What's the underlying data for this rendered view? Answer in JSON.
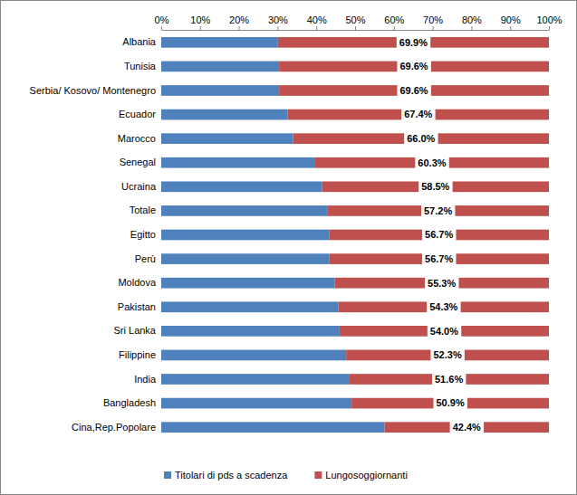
{
  "chart_data": {
    "type": "bar",
    "orientation": "horizontal",
    "stacked": true,
    "grid": false,
    "legend": "bottom",
    "categories": [
      "Albania",
      "Tunisia",
      "Serbia/ Kosovo/ Montenegro",
      "Ecuador",
      "Marocco",
      "Senegal",
      "Ucraina",
      "Totale",
      "Egitto",
      "Perù",
      "Moldova",
      "Pakistan",
      "Sri Lanka",
      "Filippine",
      "India",
      "Bangladesh",
      "Cina,Rep.Popolare"
    ],
    "series": [
      {
        "name": "Titolari di pds a scadenza",
        "color": "#4f81bd",
        "values": [
          30.1,
          30.4,
          30.4,
          32.6,
          34.0,
          39.7,
          41.5,
          42.8,
          43.3,
          43.3,
          44.7,
          45.7,
          46.0,
          47.7,
          48.4,
          49.1,
          57.6
        ]
      },
      {
        "name": "Lungosoggiornanti",
        "color": "#c0504d",
        "values": [
          69.9,
          69.6,
          69.6,
          67.4,
          66.0,
          60.3,
          58.5,
          57.2,
          56.7,
          56.7,
          55.3,
          54.3,
          54.0,
          52.3,
          51.6,
          50.9,
          42.4
        ],
        "data_labels": true,
        "value_labels": [
          "69.9%",
          "69.6%",
          "69.6%",
          "67.4%",
          "66.0%",
          "60.3%",
          "58.5%",
          "57.2%",
          "56.7%",
          "56.7%",
          "55.3%",
          "54.3%",
          "54.0%",
          "52.3%",
          "51.6%",
          "50.9%",
          "42.4%"
        ]
      }
    ],
    "xlim": [
      0,
      100
    ],
    "xticks": [
      {
        "value": 0,
        "label": "0%"
      },
      {
        "value": 10,
        "label": "10%"
      },
      {
        "value": 20,
        "label": "20%"
      },
      {
        "value": 30,
        "label": "30%"
      },
      {
        "value": 40,
        "label": "40%"
      },
      {
        "value": 50,
        "label": "50%"
      },
      {
        "value": 60,
        "label": "60%"
      },
      {
        "value": 70,
        "label": "70%"
      },
      {
        "value": 80,
        "label": "80%"
      },
      {
        "value": 90,
        "label": "90%"
      },
      {
        "value": 100,
        "label": "100%"
      }
    ]
  }
}
